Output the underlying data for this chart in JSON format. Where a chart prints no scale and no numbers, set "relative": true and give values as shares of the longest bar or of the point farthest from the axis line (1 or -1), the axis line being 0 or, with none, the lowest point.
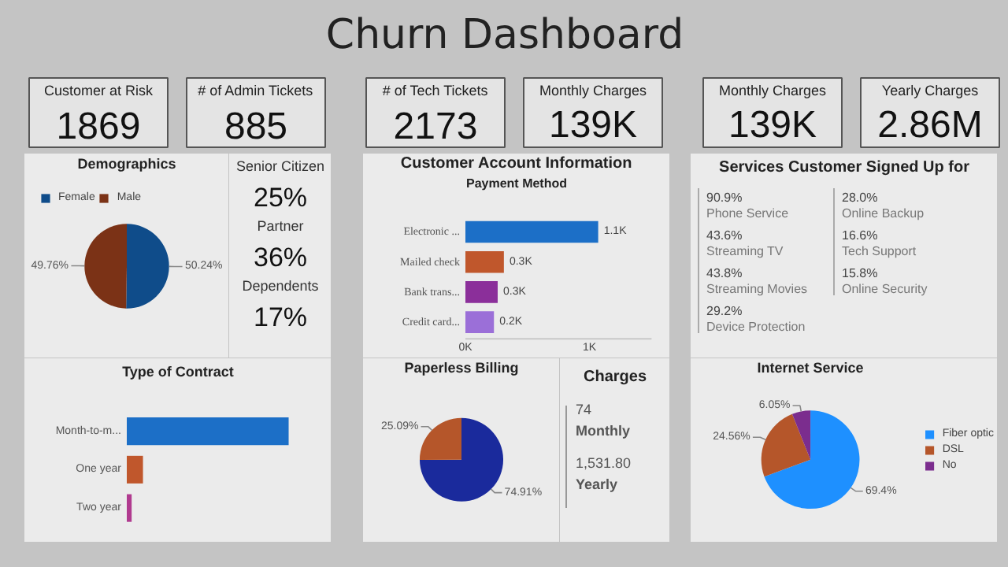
{
  "chart_data": [
    {
      "type": "other",
      "title": "Churn Dashboard",
      "annotations": [
        "Customer at Risk",
        "1869",
        "# of Admin Tickets",
        "885",
        "# of Tech Tickets",
        "2173",
        "Monthly Charges",
        "139K",
        "Monthly Charges",
        "139K",
        "Yearly Charges",
        "2.86M"
      ]
    },
    {
      "type": "pie",
      "title": "Demographics",
      "categories": [
        "Female",
        "Male"
      ],
      "values": [
        50.24,
        49.76
      ],
      "colors": [
        "#0f4c8a",
        "#7b3216"
      ],
      "value_labels": [
        "50.24%",
        "49.76%"
      ],
      "legend": "top"
    },
    {
      "type": "other",
      "annotations": [
        "Senior Citizen",
        "25%",
        "Partner",
        "36%",
        "Dependents",
        "17%"
      ]
    },
    {
      "type": "bar",
      "orientation": "horizontal",
      "title": "Type of Contract",
      "categories": [
        "Month-to-m...",
        "One year",
        "Two year"
      ],
      "values": [
        1,
        0.1,
        0.03
      ],
      "colors": [
        "#1c6fc7",
        "#c0572c",
        "#b03a8f"
      ],
      "relative": true
    },
    {
      "type": "bar",
      "orientation": "horizontal",
      "title": "Customer Account Information",
      "subtitle": "Payment Method",
      "categories": [
        "Electronic ...",
        "Mailed check",
        "Bank trans...",
        "Credit card..."
      ],
      "values": [
        1.07,
        0.31,
        0.26,
        0.23
      ],
      "colors": [
        "#1c6fc7",
        "#c0572c",
        "#8b2f9a",
        "#9b6fd8"
      ],
      "value_labels": [
        "1.1K",
        "0.3K",
        "0.3K",
        "0.2K"
      ],
      "xlim": [
        0,
        1.5
      ],
      "xticks": [
        {
          "value": 0,
          "label": "0K"
        },
        {
          "value": 1,
          "label": "1K"
        }
      ]
    },
    {
      "type": "pie",
      "title": "Paperless Billing",
      "categories": [
        null,
        null
      ],
      "values": [
        74.91,
        25.09
      ],
      "colors": [
        "#1a2a9c",
        "#b5562a"
      ],
      "value_labels": [
        "74.91%",
        "25.09%"
      ]
    },
    {
      "type": "other",
      "title": "Charges",
      "annotations": [
        "74",
        "Monthly",
        "1,531.80",
        "Yearly"
      ]
    },
    {
      "type": "other",
      "title": "Services Customer Signed Up for",
      "annotations": [
        "90.9%",
        "Phone Service",
        "43.6%",
        "Streaming TV",
        "43.8%",
        "Streaming Movies",
        "29.2%",
        "Device Protection",
        "28.0%",
        "Online Backup",
        "16.6%",
        "Tech Support",
        "15.8%",
        "Online Security"
      ]
    },
    {
      "type": "pie",
      "title": "Internet Service",
      "categories": [
        "Fiber optic",
        "DSL",
        "No"
      ],
      "values": [
        69.4,
        24.56,
        6.05
      ],
      "colors": [
        "#1e90ff",
        "#b5562a",
        "#7b2d8e"
      ],
      "value_labels": [
        "69.4%",
        "24.56%",
        "6.05%"
      ],
      "legend": "right"
    }
  ]
}
